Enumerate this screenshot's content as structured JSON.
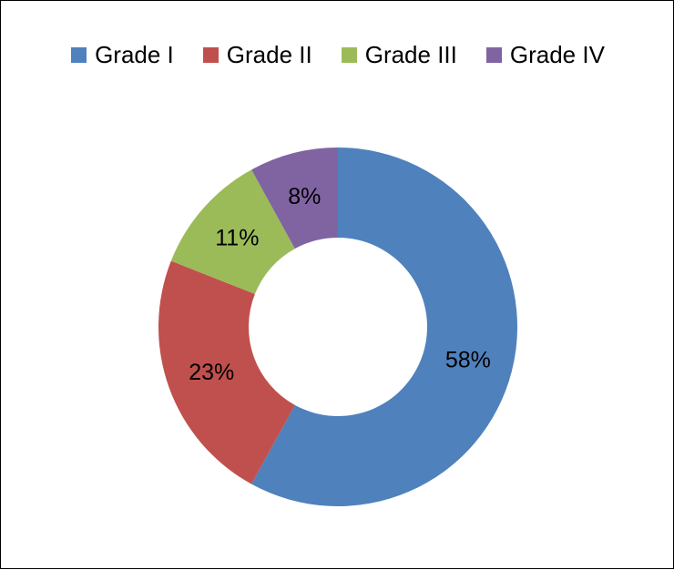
{
  "chart_data": {
    "type": "pie",
    "variant": "donut",
    "title": "",
    "legend_position": "top",
    "categories": [
      "Grade I",
      "Grade II",
      "Grade III",
      "Grade IV"
    ],
    "values": [
      58,
      23,
      11,
      8
    ],
    "labels": [
      "58%",
      "23%",
      "11%",
      "8%"
    ],
    "colors": [
      "#4F81BD",
      "#C0504D",
      "#9BBB59",
      "#8064A2"
    ]
  }
}
